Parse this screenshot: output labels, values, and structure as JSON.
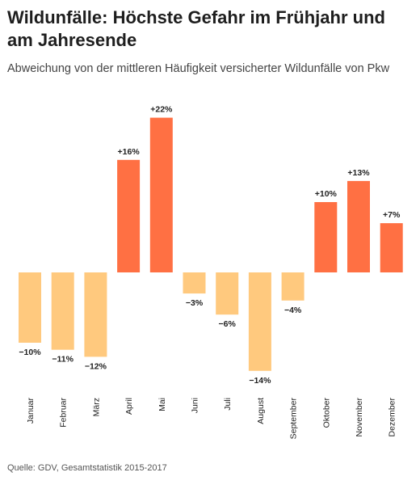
{
  "header": {
    "title": "Wildunfälle: Höchste Gefahr im Frühjahr und am Jahresende",
    "subtitle": "Abweichung von der mittleren Häufigkeit versicherter Wildunfälle von Pkw"
  },
  "footer": {
    "source": "Quelle: GDV, Gesamtstatistik 2015-2017"
  },
  "chart_data": {
    "type": "bar",
    "title": "Wildunfälle: Höchste Gefahr im Frühjahr und am Jahresende",
    "subtitle": "Abweichung von der mittleren Häufigkeit versicherter Wildunfälle von Pkw",
    "xlabel": "",
    "ylabel": "",
    "categories": [
      "Januar",
      "Februar",
      "März",
      "April",
      "Mai",
      "Juni",
      "Juli",
      "August",
      "September",
      "Oktober",
      "November",
      "Dezember"
    ],
    "values": [
      -10,
      -11,
      -12,
      16,
      22,
      -3,
      -6,
      -14,
      -4,
      10,
      13,
      7
    ],
    "data_labels": [
      "−10%",
      "−11%",
      "−12%",
      "+16%",
      "+22%",
      "−3%",
      "−6%",
      "−14%",
      "−4%",
      "+10%",
      "+13%",
      "+7%"
    ],
    "unit": "%",
    "ylim": [
      -14,
      22
    ],
    "grid": false,
    "colors": {
      "positive": "#ff7043",
      "negative": "#ffc97e"
    }
  }
}
